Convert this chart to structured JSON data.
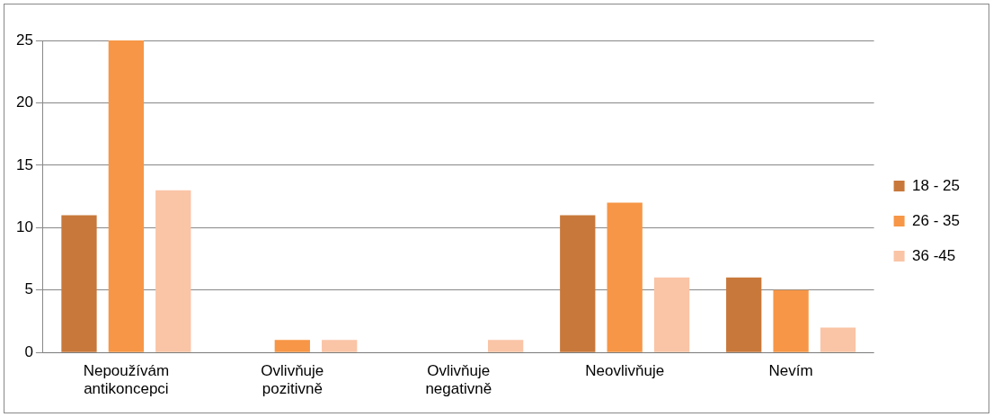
{
  "chart_data": {
    "type": "bar",
    "categories": [
      "Nepoužívám antikoncepci",
      "Ovlivňuje pozitivně",
      "Ovlivňuje negativně",
      "Neovlivňuje",
      "Nevím"
    ],
    "series": [
      {
        "name": "18 - 25",
        "color": "#c8783a",
        "values": [
          11,
          0,
          0,
          11,
          6
        ]
      },
      {
        "name": "26 - 35",
        "color": "#f79646",
        "values": [
          25,
          1,
          0,
          12,
          5
        ]
      },
      {
        "name": "36 -45",
        "color": "#fac4a6",
        "values": [
          13,
          1,
          1,
          6,
          2
        ]
      }
    ],
    "ylim": [
      0,
      25
    ],
    "yticks": [
      0,
      5,
      10,
      15,
      20,
      25
    ],
    "grid": "y",
    "legend": "right"
  }
}
